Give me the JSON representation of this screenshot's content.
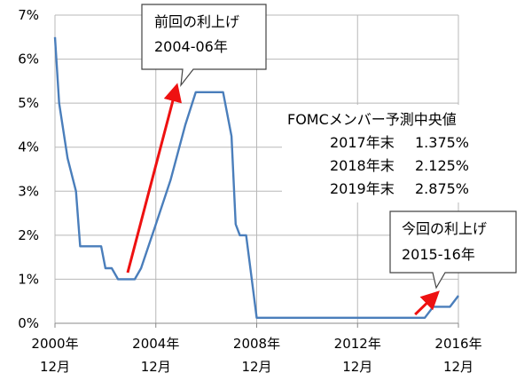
{
  "chart_data": {
    "type": "line",
    "y_axis": {
      "min": 0,
      "max": 7,
      "ticks": [
        {
          "value": 0,
          "label": "0%"
        },
        {
          "value": 1,
          "label": "1%"
        },
        {
          "value": 2,
          "label": "2%"
        },
        {
          "value": 3,
          "label": "3%"
        },
        {
          "value": 4,
          "label": "4%"
        },
        {
          "value": 5,
          "label": "5%"
        },
        {
          "value": 6,
          "label": "6%"
        },
        {
          "value": 7,
          "label": "7%"
        }
      ]
    },
    "x_axis": {
      "min": 2000.917,
      "max": 2016.917,
      "ticks": [
        {
          "value": 2000.917,
          "year": "2000年",
          "month": "12月"
        },
        {
          "value": 2004.917,
          "year": "2004年",
          "month": "12月"
        },
        {
          "value": 2008.917,
          "year": "2008年",
          "month": "12月"
        },
        {
          "value": 2012.917,
          "year": "2012年",
          "month": "12月"
        },
        {
          "value": 2016.917,
          "year": "2016年",
          "month": "12月"
        }
      ]
    },
    "grid": true,
    "series": [
      {
        "color": "#4a7ebb",
        "points": [
          [
            2000.917,
            6.5
          ],
          [
            2001.083,
            5.0
          ],
          [
            2001.417,
            3.75
          ],
          [
            2001.75,
            3.0
          ],
          [
            2001.917,
            1.75
          ],
          [
            2002.75,
            1.75
          ],
          [
            2002.917,
            1.25
          ],
          [
            2003.167,
            1.25
          ],
          [
            2003.417,
            1.0
          ],
          [
            2004.083,
            1.0
          ],
          [
            2004.333,
            1.25
          ],
          [
            2004.917,
            2.25
          ],
          [
            2005.5,
            3.25
          ],
          [
            2006.083,
            4.5
          ],
          [
            2006.5,
            5.25
          ],
          [
            2007.583,
            5.25
          ],
          [
            2007.917,
            4.25
          ],
          [
            2008.083,
            2.25
          ],
          [
            2008.25,
            2.0
          ],
          [
            2008.5,
            2.0
          ],
          [
            2008.917,
            0.125
          ],
          [
            2015.583,
            0.125
          ],
          [
            2015.917,
            0.375
          ],
          [
            2016.583,
            0.375
          ],
          [
            2016.917,
            0.625
          ]
        ]
      }
    ],
    "arrows": [
      {
        "from": [
          2003.8,
          1.15
        ],
        "to": [
          2005.75,
          5.4
        ],
        "color": "#ee1111"
      },
      {
        "from": [
          2015.2,
          0.2
        ],
        "to": [
          2016.1,
          0.7
        ],
        "color": "#ee1111"
      }
    ],
    "callouts": [
      {
        "title": "前回の利上げ",
        "subtitle": "2004-06年"
      },
      {
        "title": "今回の利上げ",
        "subtitle": "2015-16年"
      }
    ],
    "annotation": {
      "title": "FOMCメンバー予測中央値",
      "rows": [
        {
          "label": "2017年末",
          "value": "1.375%"
        },
        {
          "label": "2018年末",
          "value": "2.125%"
        },
        {
          "label": "2019年末",
          "value": "2.875%"
        }
      ]
    }
  }
}
